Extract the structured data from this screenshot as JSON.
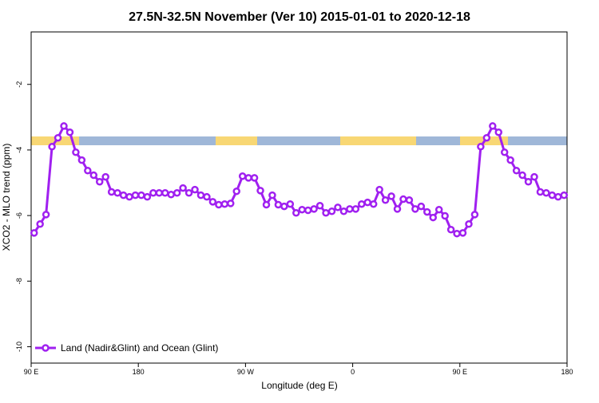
{
  "chart_data": {
    "type": "line",
    "title": "27.5N-32.5N November (Ver 10)   2015-01-01 to 2020-12-18",
    "x_label": "Longitude (deg E)",
    "y_label": "XCO2 - MLO trend (ppm)",
    "x": [
      92.5,
      97.5,
      102.5,
      107.5,
      112.5,
      117.5,
      122.5,
      127.5,
      132.5,
      137.5,
      142.5,
      147.5,
      152.5,
      157.5,
      162.5,
      167.5,
      172.5,
      177.5,
      182.5,
      187.5,
      192.5,
      197.5,
      202.5,
      207.5,
      212.5,
      217.5,
      222.5,
      227.5,
      232.5,
      237.5,
      242.5,
      247.5,
      252.5,
      257.5,
      262.5,
      267.5,
      272.5,
      277.5,
      282.5,
      287.5,
      292.5,
      297.5,
      302.5,
      307.5,
      312.5,
      317.5,
      322.5,
      327.5,
      332.5,
      337.5,
      342.5,
      347.5,
      352.5,
      357.5,
      362.5,
      367.5,
      372.5,
      377.5,
      382.5,
      387.5,
      392.5,
      397.5,
      402.5,
      407.5,
      412.5,
      417.5,
      422.5,
      427.5,
      432.5,
      437.5,
      442.5,
      447.5,
      452.5,
      457.5,
      462.5,
      467.5,
      472.5,
      477.5,
      482.5,
      487.5,
      492.5,
      497.5,
      502.5,
      507.5,
      512.5,
      517.5,
      522.5,
      527.5,
      532.5,
      537.5
    ],
    "series": [
      {
        "name": "Land (Nadir&Glint) and Ocean (Glint)",
        "color": "#a020f0",
        "values": [
          -6.53,
          -6.26,
          -5.97,
          -3.9,
          -3.63,
          -3.27,
          -3.46,
          -4.07,
          -4.31,
          -4.63,
          -4.77,
          -4.97,
          -4.82,
          -5.28,
          -5.31,
          -5.38,
          -5.43,
          -5.38,
          -5.38,
          -5.43,
          -5.31,
          -5.31,
          -5.31,
          -5.36,
          -5.31,
          -5.16,
          -5.31,
          -5.21,
          -5.38,
          -5.43,
          -5.58,
          -5.67,
          -5.65,
          -5.63,
          -5.26,
          -4.8,
          -4.85,
          -4.85,
          -5.24,
          -5.67,
          -5.38,
          -5.67,
          -5.72,
          -5.65,
          -5.92,
          -5.82,
          -5.84,
          -5.8,
          -5.7,
          -5.92,
          -5.87,
          -5.75,
          -5.87,
          -5.8,
          -5.8,
          -5.65,
          -5.6,
          -5.65,
          -5.21,
          -5.53,
          -5.41,
          -5.8,
          -5.5,
          -5.53,
          -5.8,
          -5.72,
          -5.89,
          -6.06,
          -5.82,
          -6.01,
          -6.43,
          -6.55,
          -6.53,
          -6.26,
          -5.97,
          -3.9,
          -3.63,
          -3.27,
          -3.46,
          -4.07,
          -4.31,
          -4.63,
          -4.77,
          -4.97,
          -4.82,
          -5.28,
          -5.31,
          -5.38,
          -5.43,
          -5.38
        ]
      }
    ],
    "xlim": [
      90,
      540
    ],
    "xticks": [
      {
        "value": 90,
        "label": "90 E"
      },
      {
        "value": 180,
        "label": "180"
      },
      {
        "value": 270,
        "label": "90 W"
      },
      {
        "value": 360,
        "label": "0"
      },
      {
        "value": 450,
        "label": "90 E"
      },
      {
        "value": 540,
        "label": "180"
      }
    ],
    "ylim": [
      -10.5,
      -0.4
    ],
    "yticks": [
      -10,
      -8,
      -6,
      -4,
      -2
    ],
    "legend": "bottom-left"
  }
}
